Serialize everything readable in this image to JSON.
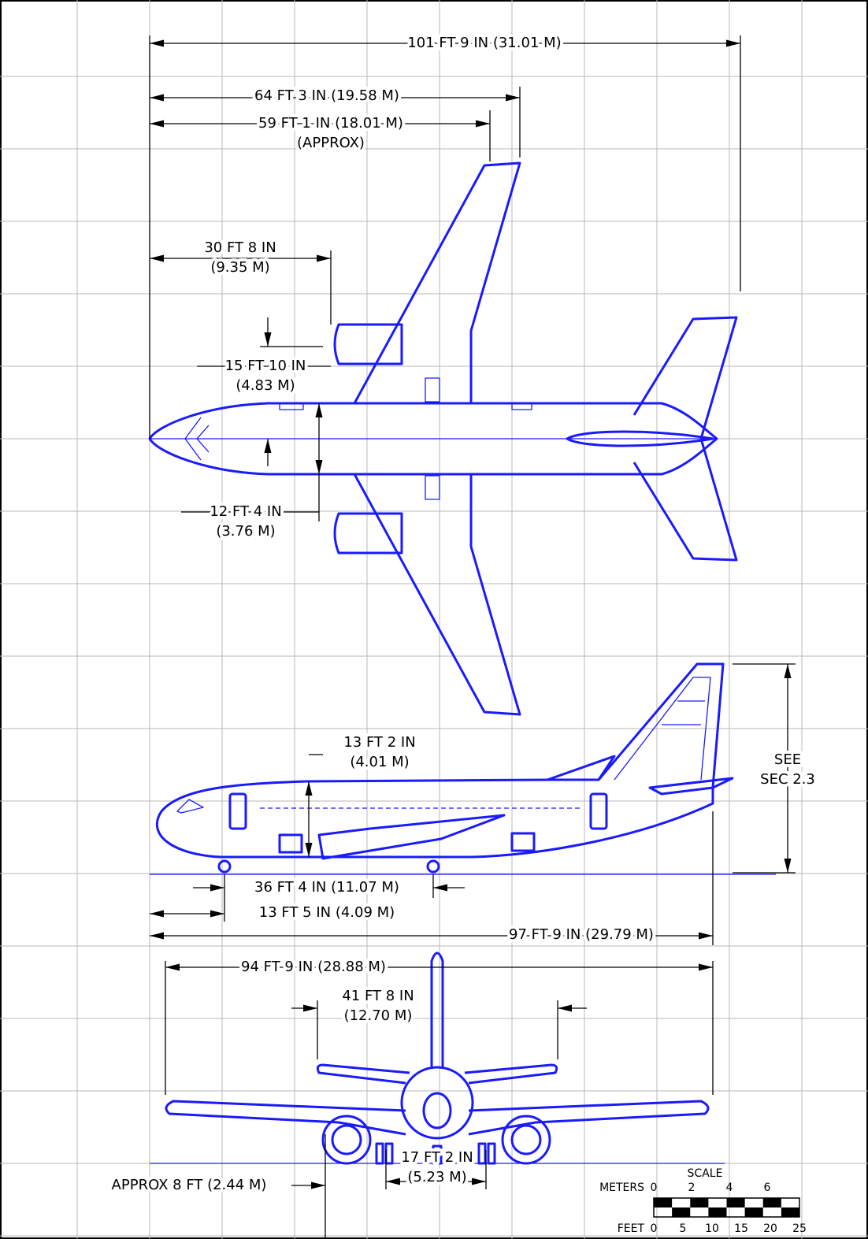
{
  "dimensions": [
    {
      "lines": [
        "101 FT 9 IN (31.01 M)"
      ]
    },
    {
      "lines": [
        "64 FT 3 IN (19.58 M)"
      ]
    },
    {
      "lines": [
        "59 FT 1 IN (18.01 M)",
        "(APPROX)"
      ]
    },
    {
      "lines": [
        "30 FT 8 IN",
        "(9.35 M)"
      ]
    },
    {
      "lines": [
        "15 FT 10 IN",
        "(4.83 M)"
      ]
    },
    {
      "lines": [
        "12 FT 4 IN",
        "(3.76 M)"
      ]
    },
    {
      "lines": [
        "13 FT 2 IN",
        "(4.01 M)"
      ]
    },
    {
      "lines": [
        "SEE",
        "SEC 2.3"
      ]
    },
    {
      "lines": [
        "36 FT 4 IN (11.07 M)"
      ]
    },
    {
      "lines": [
        "13 FT 5 IN (4.09 M)"
      ]
    },
    {
      "lines": [
        "97 FT 9 IN (29.79 M)"
      ]
    },
    {
      "lines": [
        "94 FT 9 IN (28.88 M)"
      ]
    },
    {
      "lines": [
        "41 FT 8 IN",
        "(12.70 M)"
      ]
    },
    {
      "lines": [
        "17 FT 2 IN",
        "(5.23 M)"
      ]
    },
    {
      "lines": [
        "APPROX 8 FT (2.44 M)"
      ]
    }
  ],
  "scale": {
    "title": "SCALE",
    "meters_label": "METERS",
    "meters_ticks": [
      "0",
      "2",
      "4",
      "6"
    ],
    "feet_label": "FEET",
    "feet_ticks": [
      "0",
      "5",
      "10",
      "15",
      "20",
      "25"
    ]
  }
}
